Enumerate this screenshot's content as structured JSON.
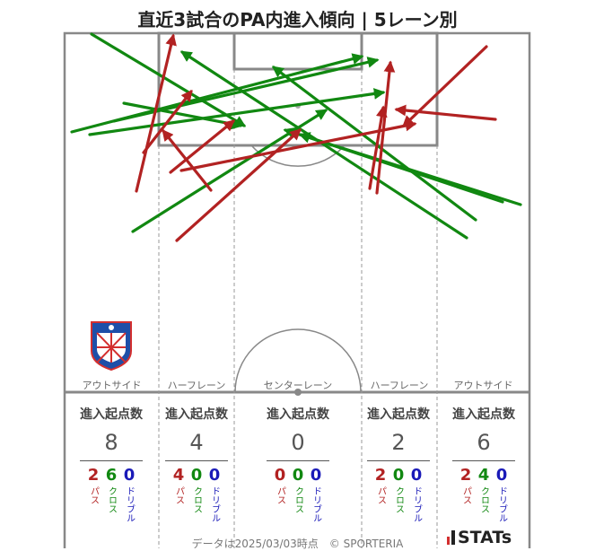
{
  "title": "直近3試合のPA内進入傾向 | 5レーン別",
  "lanes": [
    "アウトサイド",
    "ハーフレーン",
    "センターレーン",
    "ハーフレーン",
    "アウトサイド"
  ],
  "stat_header": "進入起点数",
  "categories": [
    "パス",
    "クロス",
    "ドリブル"
  ],
  "colors": {
    "pass": "#b22222",
    "cross": "#118811",
    "dribble": "#1a1ab8"
  },
  "stats": [
    {
      "lane": "アウトサイド",
      "total": "8",
      "pass": "2",
      "cross": "6",
      "dribble": "0"
    },
    {
      "lane": "ハーフレーン",
      "total": "4",
      "pass": "4",
      "cross": "0",
      "dribble": "0"
    },
    {
      "lane": "センターレーン",
      "total": "0",
      "pass": "0",
      "cross": "0",
      "dribble": "0"
    },
    {
      "lane": "ハーフレーン",
      "total": "2",
      "pass": "2",
      "cross": "0",
      "dribble": "0"
    },
    {
      "lane": "アウトサイド",
      "total": "6",
      "pass": "2",
      "cross": "4",
      "dribble": "0"
    }
  ],
  "footer": "データは2025/03/03時点　© SPORTERIA",
  "brand": "STATs",
  "team_logo": "team-crest",
  "chart_data": {
    "type": "arrow-map",
    "title": "直近3試合のPA内進入傾向 | 5レーン別",
    "categories": [
      "パス",
      "クロス",
      "ドリブル"
    ],
    "arrows": [
      {
        "type": "cross",
        "from": [
          102,
          38
        ],
        "to": [
          272,
          140
        ]
      },
      {
        "type": "cross",
        "from": [
          520,
          265
        ],
        "to": [
          203,
          58
        ]
      },
      {
        "type": "cross",
        "from": [
          580,
          228
        ],
        "to": [
          318,
          145
        ]
      },
      {
        "type": "cross",
        "from": [
          530,
          245
        ],
        "to": [
          305,
          75
        ]
      },
      {
        "type": "cross",
        "from": [
          80,
          147
        ],
        "to": [
          403,
          63
        ]
      },
      {
        "type": "cross",
        "from": [
          100,
          150
        ],
        "to": [
          427,
          103
        ]
      },
      {
        "type": "cross",
        "from": [
          127,
          135
        ],
        "to": [
          420,
          67
        ]
      },
      {
        "type": "cross",
        "from": [
          138,
          115
        ],
        "to": [
          268,
          140
        ]
      },
      {
        "type": "cross",
        "from": [
          148,
          258
        ],
        "to": [
          363,
          123
        ]
      },
      {
        "type": "cross",
        "from": [
          560,
          225
        ],
        "to": [
          335,
          150
        ]
      },
      {
        "type": "pass",
        "from": [
          152,
          213
        ],
        "to": [
          193,
          40
        ]
      },
      {
        "type": "pass",
        "from": [
          160,
          170
        ],
        "to": [
          213,
          102
        ]
      },
      {
        "type": "pass",
        "from": [
          235,
          212
        ],
        "to": [
          182,
          146
        ]
      },
      {
        "type": "pass",
        "from": [
          190,
          192
        ],
        "to": [
          260,
          135
        ]
      },
      {
        "type": "pass",
        "from": [
          197,
          268
        ],
        "to": [
          334,
          145
        ]
      },
      {
        "type": "pass",
        "from": [
          202,
          190
        ],
        "to": [
          462,
          138
        ]
      },
      {
        "type": "pass",
        "from": [
          420,
          215
        ],
        "to": [
          435,
          70
        ]
      },
      {
        "type": "pass",
        "from": [
          552,
          133
        ],
        "to": [
          442,
          122
        ]
      },
      {
        "type": "pass",
        "from": [
          542,
          52
        ],
        "to": [
          450,
          140
        ]
      },
      {
        "type": "pass",
        "from": [
          412,
          210
        ],
        "to": [
          427,
          120
        ]
      }
    ]
  }
}
